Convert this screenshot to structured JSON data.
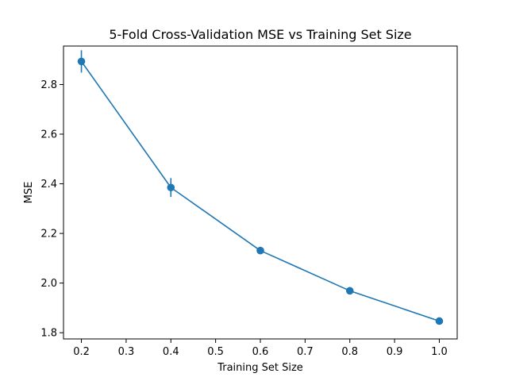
{
  "chart_data": {
    "type": "line",
    "title": "5-Fold Cross-Validation MSE vs Training Set Size",
    "xlabel": "Training Set Size",
    "ylabel": "MSE",
    "xlim": [
      0.16,
      1.04
    ],
    "ylim": [
      1.775,
      2.955
    ],
    "xticks": [
      0.2,
      0.3,
      0.4,
      0.5,
      0.6,
      0.7,
      0.8,
      0.9,
      1.0
    ],
    "xtick_labels": [
      "0.2",
      "0.3",
      "0.4",
      "0.5",
      "0.6",
      "0.7",
      "0.8",
      "0.9",
      "1.0"
    ],
    "yticks": [
      1.8,
      2.0,
      2.2,
      2.4,
      2.6,
      2.8
    ],
    "ytick_labels": [
      "1.8",
      "2.0",
      "2.2",
      "2.4",
      "2.6",
      "2.8"
    ],
    "grid": false,
    "series": [
      {
        "x": [
          0.2,
          0.4,
          0.6,
          0.8,
          1.0
        ],
        "y": [
          2.893,
          2.385,
          2.131,
          1.969,
          1.847
        ],
        "yerr": [
          0.045,
          0.038,
          0.008,
          0.007,
          0.01
        ],
        "color": "#1f77b4",
        "marker": "circle"
      }
    ]
  }
}
